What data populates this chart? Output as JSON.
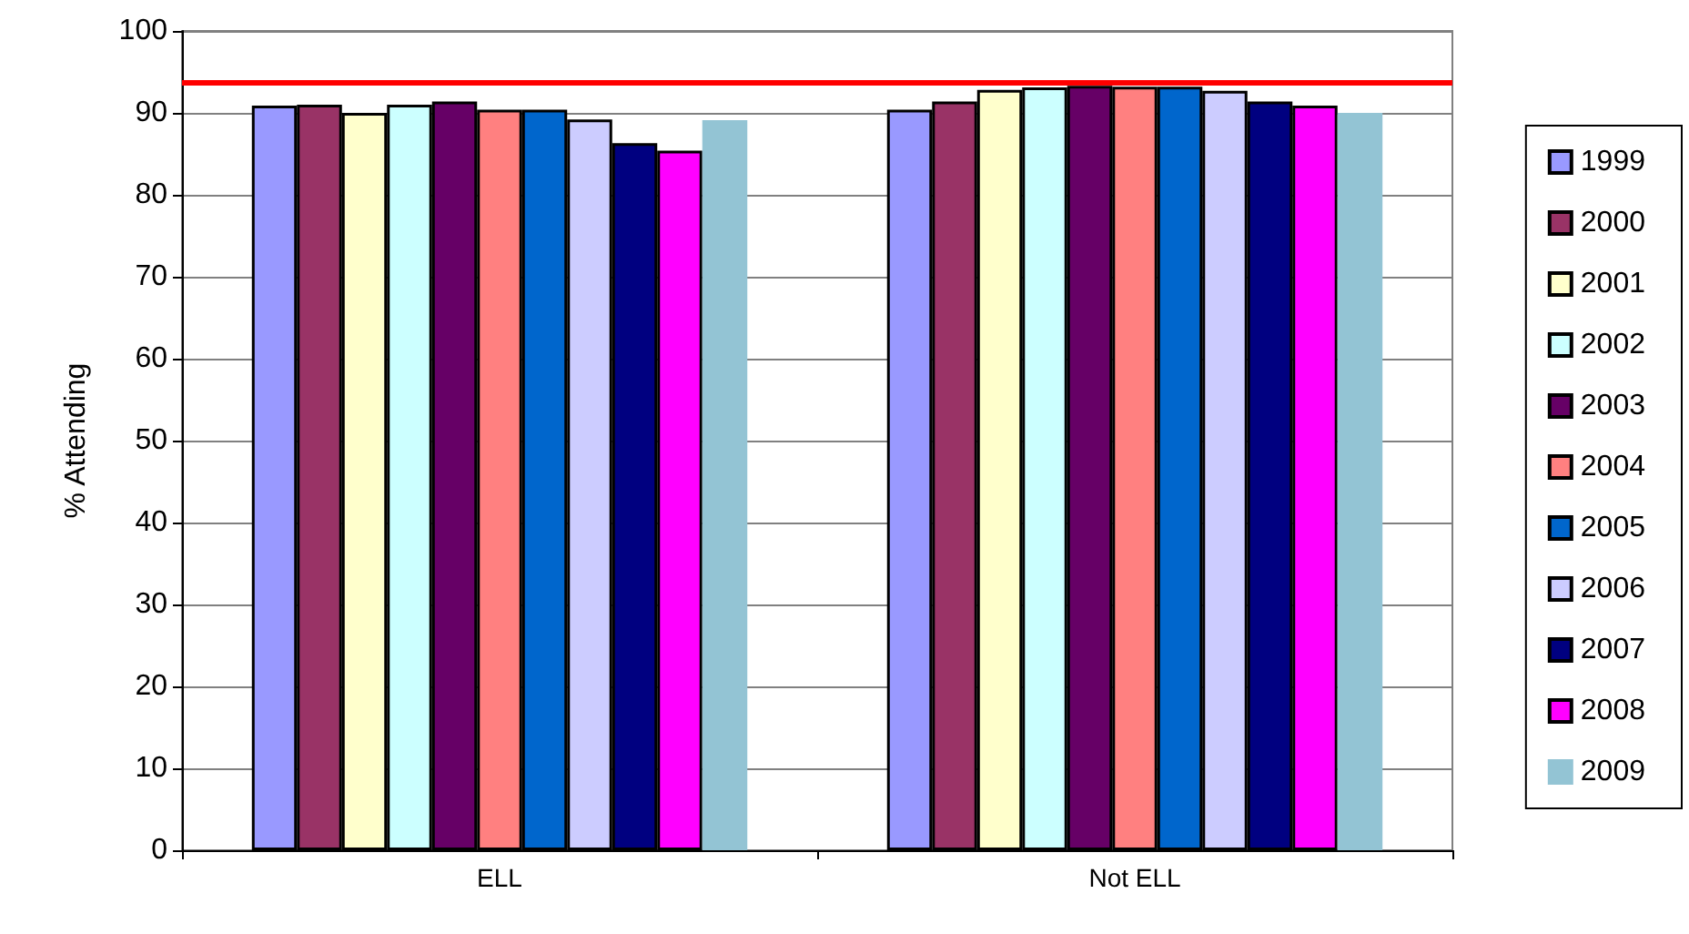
{
  "chart_data": {
    "type": "bar",
    "ylabel": "% Attending",
    "categories": [
      "ELL",
      "Not ELL"
    ],
    "series": [
      {
        "name": "1999",
        "color": "#9999ff",
        "values": [
          90.9,
          90.4
        ]
      },
      {
        "name": "2000",
        "color": "#993366",
        "values": [
          91,
          91.4
        ]
      },
      {
        "name": "2001",
        "color": "#ffffcc",
        "values": [
          90,
          92.8
        ]
      },
      {
        "name": "2002",
        "color": "#ccffff",
        "values": [
          91,
          93.1
        ]
      },
      {
        "name": "2003",
        "color": "#660066",
        "values": [
          91.4,
          93.3
        ]
      },
      {
        "name": "2004",
        "color": "#ff8080",
        "values": [
          90.4,
          93.2
        ]
      },
      {
        "name": "2005",
        "color": "#0066cc",
        "values": [
          90.4,
          93.2
        ]
      },
      {
        "name": "2006",
        "color": "#ccccff",
        "values": [
          89.2,
          92.7
        ]
      },
      {
        "name": "2007",
        "color": "#000080",
        "values": [
          86.3,
          91.4
        ]
      },
      {
        "name": "2008",
        "color": "#ff00ff",
        "values": [
          85.4,
          90.9
        ]
      },
      {
        "name": "2009",
        "color": "#93c4d4",
        "values": [
          89.1,
          90
        ]
      }
    ],
    "ylim": [
      0,
      100
    ],
    "yticks": [
      0,
      10,
      20,
      30,
      40,
      50,
      60,
      70,
      80,
      90,
      100
    ],
    "grid": "y",
    "legend": "right",
    "ref_lines": [
      {
        "axis": "y",
        "value": 93.7,
        "color": "#ff0000"
      }
    ]
  }
}
